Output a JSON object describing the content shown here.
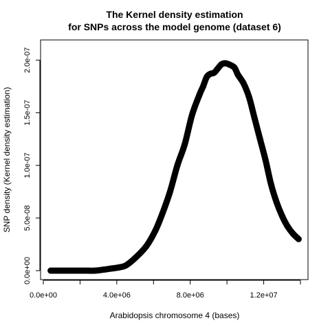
{
  "chart_data": {
    "type": "line",
    "title": "The Kernel density estimation",
    "subtitle": "for SNPs across the model genome (dataset 6)",
    "xlabel": "Arabidopsis chromosome 4 (bases)",
    "ylabel": "SNP density (Kernel density estimation)",
    "xlim": [
      0,
      14000000
    ],
    "ylim": [
      0,
      2.1e-07
    ],
    "xticks": [
      0,
      4000000,
      8000000,
      12000000
    ],
    "xtick_labels": [
      "0.0e+00",
      "4.0e+06",
      "8.0e+06",
      "1.2e+07"
    ],
    "yticks": [
      0,
      5e-08,
      1e-07,
      1.5e-07,
      2e-07
    ],
    "ytick_labels": [
      "0.0e+00",
      "5.0e-08",
      "1.0e-07",
      "1.5e-07",
      "2.0e-07"
    ],
    "line_color": "#000000",
    "series": [
      {
        "x": [
          400000,
          1000000,
          1600000,
          2200000,
          2800000,
          3300000,
          3700000,
          4100000,
          4500000,
          5000000,
          5600000,
          6100000,
          6500000,
          6900000,
          7300000,
          7700000,
          8100000,
          8500000,
          8700000,
          8900000,
          9100000,
          9300000,
          9500000,
          9700000,
          9900000,
          10100000,
          10400000,
          10600000,
          10900000,
          11200000,
          11500000,
          11800000,
          12100000,
          12400000,
          12700000,
          13000000,
          13300000,
          13600000,
          13900000
        ],
        "y": [
          0,
          0,
          0,
          0,
          0,
          1e-09,
          2e-09,
          3e-09,
          5e-09,
          1.2e-08,
          2.3e-08,
          3.8e-08,
          5.5e-08,
          7.5e-08,
          1e-07,
          1.2e-07,
          1.48e-07,
          1.67e-07,
          1.75e-07,
          1.84e-07,
          1.87e-07,
          1.88e-07,
          1.92e-07,
          1.96e-07,
          1.97e-07,
          1.96e-07,
          1.93e-07,
          1.86e-07,
          1.78e-07,
          1.65e-07,
          1.45e-07,
          1.25e-07,
          1.05e-07,
          8.2e-08,
          6.5e-08,
          5.2e-08,
          4.2e-08,
          3.5e-08,
          3e-08
        ]
      }
    ]
  }
}
